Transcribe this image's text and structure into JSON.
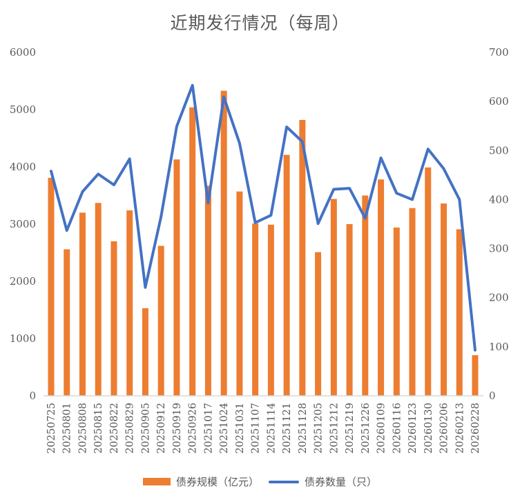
{
  "title": "近期发行情况（每周）",
  "legend": {
    "bar_label": "债券规模（亿元）",
    "line_label": "债券数量（只）"
  },
  "colors": {
    "bar": "#ED7D31",
    "line": "#4472C4",
    "axis": "#D9D9D9",
    "text": "#595959"
  },
  "chart_data": {
    "type": "bar+line",
    "title": "近期发行情况（每周）",
    "xlabel": "",
    "ylabel": "债券规模（亿元）",
    "y2label": "债券数量（只）",
    "ylim": [
      0,
      6000
    ],
    "y2lim": [
      0,
      700
    ],
    "yticks": [
      0,
      1000,
      2000,
      3000,
      4000,
      5000,
      6000
    ],
    "y2ticks": [
      0,
      100,
      200,
      300,
      400,
      500,
      600,
      700
    ],
    "grid": false,
    "legend_position": "bottom",
    "categories": [
      "20250725",
      "20250801",
      "20250808",
      "20250815",
      "20250822",
      "20250829",
      "20250905",
      "20250912",
      "20250919",
      "20250926",
      "20251017",
      "20251024",
      "20251031",
      "20251107",
      "20251114",
      "20251121",
      "20251128",
      "20251205",
      "20251212",
      "20251219",
      "20251226",
      "20260109",
      "20260116",
      "20260123",
      "20260130",
      "20260206",
      "20260213",
      "20260228"
    ],
    "series": [
      {
        "name": "债券规模（亿元）",
        "type": "bar",
        "axis": "left",
        "values": [
          3810,
          2560,
          3200,
          3370,
          2700,
          3240,
          1530,
          2620,
          4130,
          5040,
          3670,
          5330,
          3570,
          3010,
          2990,
          4210,
          4820,
          2510,
          3440,
          3000,
          3500,
          3780,
          2940,
          3280,
          3990,
          3360,
          2910,
          710
        ]
      },
      {
        "name": "债券数量（只）",
        "type": "line",
        "axis": "right",
        "values": [
          458,
          337,
          416,
          452,
          430,
          483,
          221,
          365,
          549,
          633,
          393,
          609,
          515,
          353,
          368,
          548,
          518,
          351,
          421,
          423,
          362,
          485,
          413,
          400,
          503,
          463,
          400,
          93
        ]
      }
    ]
  }
}
